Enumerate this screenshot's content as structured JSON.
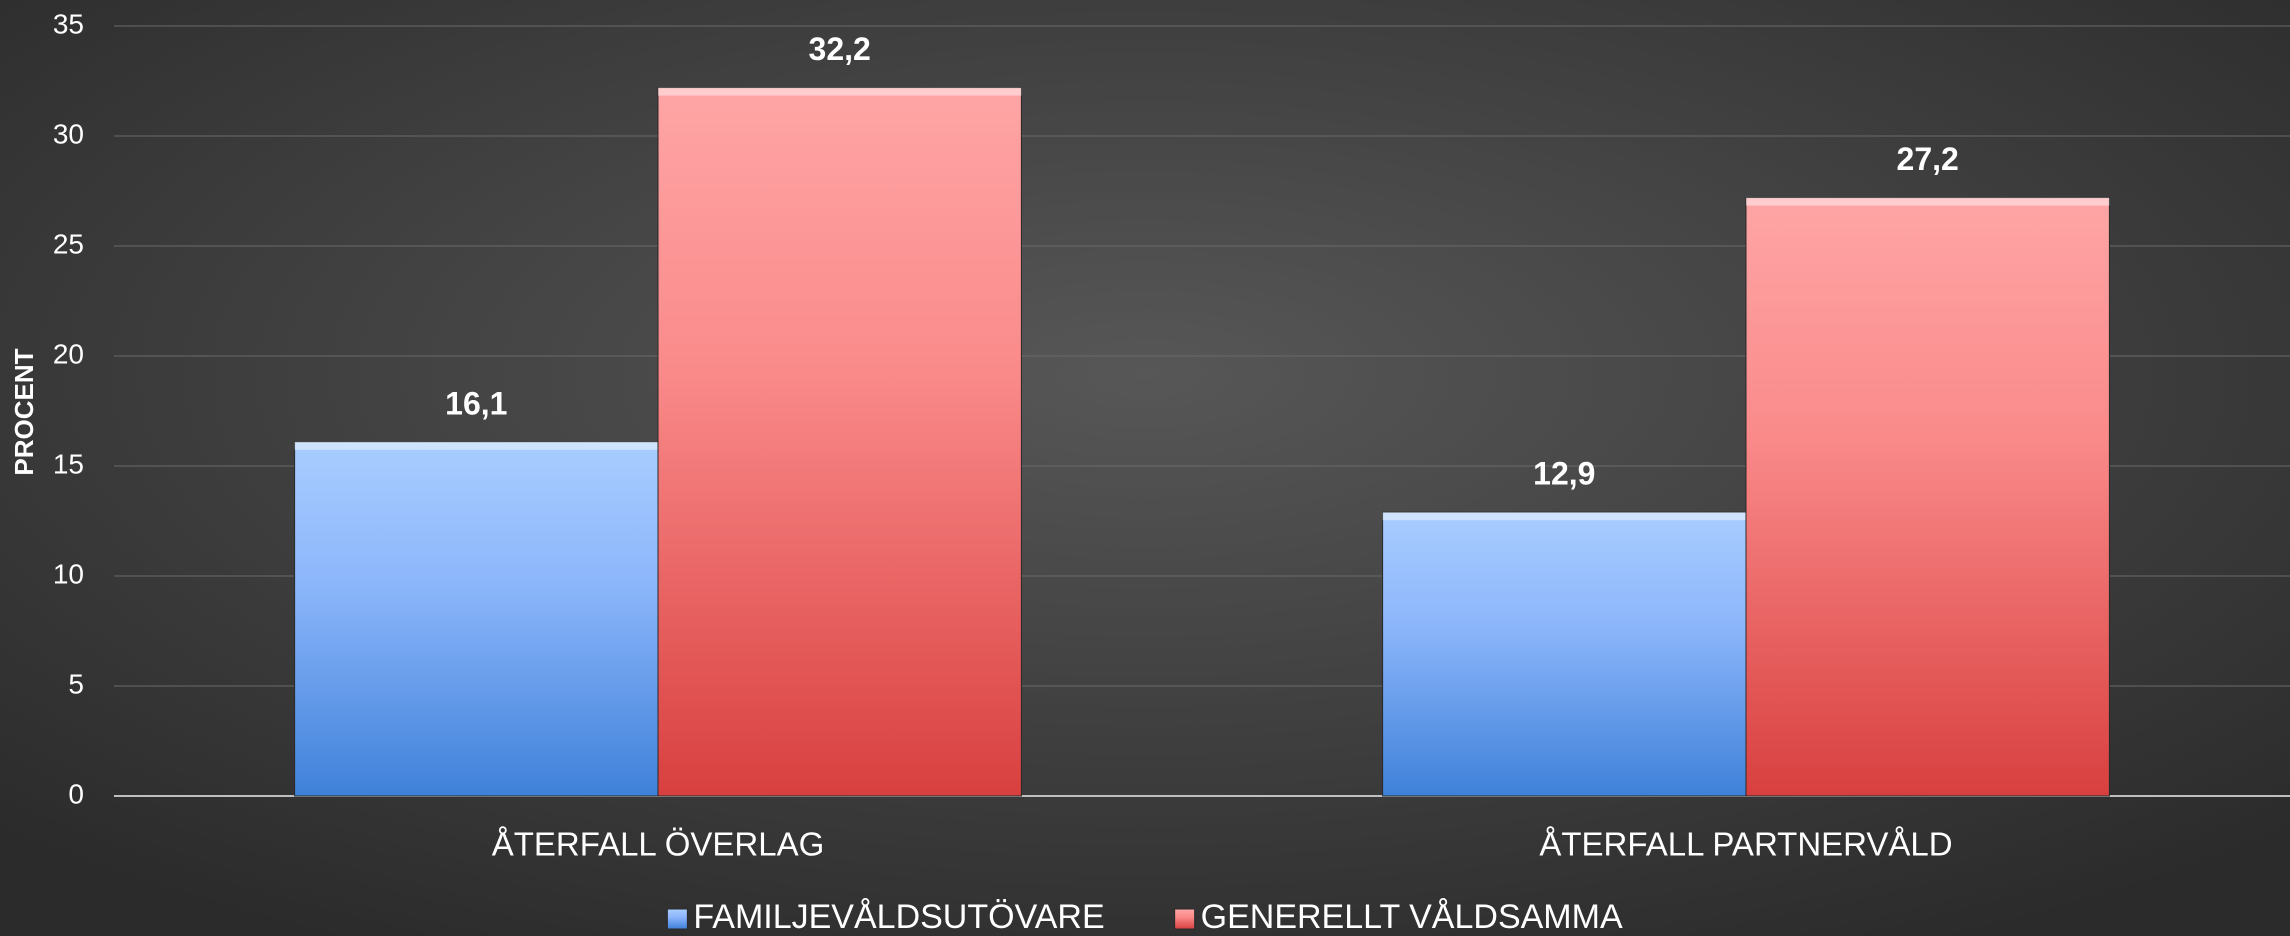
{
  "chart_data": {
    "type": "bar",
    "ylabel": "PROCENT",
    "categories": [
      "ÅTERFALL ÖVERLAG",
      "ÅTERFALL PARTNERVÅLD"
    ],
    "series": [
      {
        "name": "FAMILJEVÅLDSUTÖVARE",
        "color": "#5b9bf0",
        "values": [
          16.1,
          12.9
        ],
        "value_labels": [
          "16,1",
          "12,9"
        ]
      },
      {
        "name": "GENERELLT VÅLDSAMMA",
        "color": "#f07070",
        "values": [
          32.2,
          27.2
        ],
        "value_labels": [
          "32,2",
          "27,2"
        ]
      }
    ],
    "ylim": [
      0,
      35
    ],
    "yticks": [
      0,
      5,
      10,
      15,
      20,
      25,
      30,
      35
    ],
    "grid": true,
    "legend": "bottom"
  }
}
